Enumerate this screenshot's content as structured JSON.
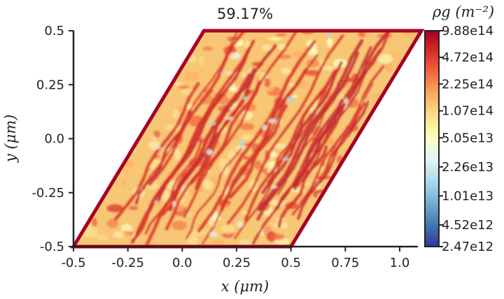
{
  "chart_data": {
    "type": "heatmap",
    "title": "59.17%",
    "xlabel": "x (μm)",
    "ylabel": "y (μm)",
    "xlim": [
      -0.5,
      1.1
    ],
    "ylim": [
      -0.5,
      0.5
    ],
    "x_ticks": [
      -0.5,
      -0.25,
      0.0,
      0.25,
      0.5,
      0.75,
      1.0
    ],
    "x_tick_labels": [
      "-0.5",
      "-0.25",
      "0.0",
      "0.25",
      "0.5",
      "0.75",
      "1.0"
    ],
    "y_ticks": [
      -0.5,
      -0.25,
      0.0,
      0.25,
      0.5
    ],
    "y_tick_labels": [
      "-0.5",
      "-0.25",
      "0.0",
      "0.25",
      "0.5"
    ],
    "domain_parallelogram": [
      [
        -0.5,
        -0.5
      ],
      [
        0.5,
        -0.5
      ],
      [
        1.1,
        0.5
      ],
      [
        0.1,
        0.5
      ]
    ],
    "colorbar": {
      "label": "ρg (m⁻²)",
      "scale": "log",
      "range": [
        2470000000000.0,
        988000000000000.0
      ],
      "tick_values": [
        988000000000000.0,
        472000000000000.0,
        225000000000000.0,
        107000000000000.0,
        50500000000000.0,
        22600000000000.0,
        10100000000000.0,
        4520000000000.0,
        2470000000000.0
      ],
      "tick_labels": [
        "9.88e14",
        "4.72e14",
        "2.25e14",
        "1.07e14",
        "5.05e13",
        "2.26e13",
        "1.01e13",
        "4.52e12",
        "2.47e12"
      ],
      "colors": [
        "#313695",
        "#4575b4",
        "#74add1",
        "#abd9e9",
        "#e0f3f8",
        "#ffffbf",
        "#fee090",
        "#fdae61",
        "#f46d43",
        "#d73027",
        "#a50026"
      ]
    }
  }
}
